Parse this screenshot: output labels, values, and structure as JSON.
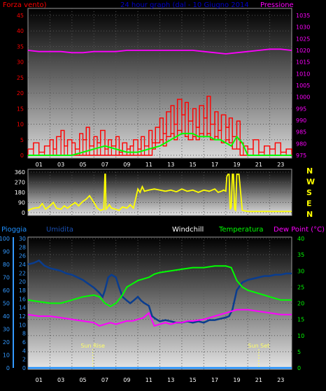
{
  "colors": {
    "wind": "#ff0000",
    "pressure": "#ff00ff",
    "title": "#0000cc",
    "direction": "#ffff00",
    "rain": "#1e90ff",
    "humidity": "#0a3d8f",
    "windchill": "#ffffff",
    "temperature": "#00ff00",
    "dewpoint": "#ff00ff",
    "axis_left": "#3399ff",
    "axis_right": "#00ff00",
    "sun": "#ffff66"
  },
  "chart_data": [
    {
      "type": "line",
      "title": "24 hour graph (dal - 10 Giugno 2014",
      "xtick_labels": [
        "01",
        "03",
        "05",
        "07",
        "09",
        "11",
        "13",
        "15",
        "17",
        "19",
        "21",
        "23"
      ],
      "y_left_label": "Forza vento)",
      "y_left_ticks": [
        "0",
        "5",
        "10",
        "15",
        "20",
        "25",
        "30",
        "35",
        "40",
        "45"
      ],
      "y_left_range": [
        0,
        45
      ],
      "y_right_label": "Pressione",
      "y_right_ticks": [
        "975",
        "980",
        "985",
        "990",
        "995",
        "1000",
        "1005",
        "1010",
        "1015",
        "1020",
        "1025",
        "1030",
        "1035"
      ],
      "y_right_range": [
        975,
        1035
      ],
      "series": [
        {
          "name": "Forza vento",
          "x": [
            0,
            0.5,
            1,
            1.5,
            2,
            2.3,
            2.6,
            3,
            3.3,
            3.6,
            4,
            4.3,
            4.7,
            5,
            5.3,
            5.6,
            6,
            6.3,
            6.6,
            7,
            7.3,
            7.6,
            8,
            8.3,
            8.6,
            9,
            9.3,
            9.6,
            10,
            10.3,
            10.6,
            11,
            11.3,
            11.6,
            12,
            12.3,
            12.6,
            13,
            13.3,
            13.6,
            14,
            14.3,
            14.6,
            15,
            15.3,
            15.6,
            16,
            16.3,
            16.6,
            17,
            17.3,
            17.6,
            18,
            18.3,
            18.6,
            19,
            19.3,
            19.6,
            20,
            20.5,
            21,
            21.5,
            22,
            22.5,
            23,
            23.5,
            24
          ],
          "values": [
            2,
            4,
            1,
            3,
            5,
            2,
            6,
            8,
            3,
            5,
            4,
            2,
            7,
            5,
            9,
            3,
            6,
            4,
            8,
            2,
            5,
            3,
            6,
            1,
            4,
            2,
            3,
            5,
            2,
            6,
            3,
            8,
            4,
            9,
            12,
            7,
            14,
            16,
            10,
            18,
            13,
            17,
            11,
            15,
            9,
            16,
            12,
            19,
            10,
            14,
            8,
            13,
            9,
            12,
            6,
            11,
            4,
            3,
            2,
            5,
            1,
            3,
            2,
            4,
            1,
            2,
            1
          ],
          "envelope_low": [
            0,
            0,
            0,
            0,
            0,
            0,
            0,
            0,
            0,
            0,
            0,
            0,
            0,
            0,
            0,
            0,
            0,
            0,
            0,
            0,
            0,
            0,
            0,
            0,
            0,
            0,
            0,
            0,
            0,
            0,
            0,
            0,
            2,
            4,
            5,
            3,
            6,
            7,
            5,
            8,
            7,
            6,
            5,
            6,
            5,
            7,
            6,
            7,
            5,
            6,
            5,
            4,
            5,
            4,
            2,
            2,
            0,
            0,
            0,
            0,
            0,
            0,
            0,
            0,
            0,
            0,
            0
          ]
        },
        {
          "name": "Raffica",
          "x": [
            0,
            1,
            2,
            3,
            4,
            5,
            6,
            7,
            8,
            9,
            10,
            11,
            12,
            12.5,
            13,
            13.5,
            14,
            14.5,
            15,
            15.5,
            16,
            16.5,
            17,
            17.5,
            18,
            18.5,
            19,
            19.5,
            20,
            21,
            22,
            23,
            24
          ],
          "values": [
            0,
            0,
            0,
            0,
            0,
            1,
            2,
            3,
            2,
            1,
            1,
            2,
            3,
            4,
            5,
            6,
            7,
            7,
            7,
            6,
            6,
            6,
            5,
            5,
            4,
            3,
            6,
            4,
            0,
            0,
            0,
            0,
            0
          ]
        },
        {
          "name": "Pressione",
          "x": [
            0,
            1,
            2,
            3,
            4,
            5,
            6,
            7,
            8,
            9,
            10,
            11,
            12,
            13,
            14,
            15,
            16,
            17,
            18,
            19,
            20,
            21,
            22,
            23,
            24
          ],
          "values": [
            1020,
            1019.5,
            1019.5,
            1019.5,
            1019,
            1019,
            1019.5,
            1019.5,
            1019.5,
            1020,
            1020,
            1020,
            1020,
            1020,
            1020,
            1020,
            1019.5,
            1019,
            1018.5,
            1019,
            1019.5,
            1020,
            1020.5,
            1020.5,
            1020
          ]
        }
      ]
    },
    {
      "type": "line",
      "xlabel": "",
      "y_left_ticks": [
        "0",
        "90",
        "180",
        "270",
        "360"
      ],
      "y_left_range": [
        0,
        360
      ],
      "compass_labels": [
        "N",
        "W",
        "S",
        "E",
        "N"
      ],
      "series": [
        {
          "name": "Direzione",
          "x": [
            0,
            0.5,
            1,
            1.3,
            1.6,
            2,
            2.3,
            2.6,
            3,
            3.3,
            3.6,
            4,
            4.3,
            4.6,
            5,
            5.3,
            5.6,
            6,
            6.3,
            6.6,
            6.9,
            7,
            7.05,
            7.1,
            7.2,
            7.4,
            7.6,
            8,
            8.3,
            8.6,
            9,
            9.3,
            9.6,
            10,
            10.2,
            10.4,
            10.6,
            11,
            11.5,
            12,
            12.5,
            13,
            13.5,
            14,
            14.5,
            15,
            15.5,
            16,
            16.5,
            17,
            17.3,
            17.6,
            17.8,
            18,
            18.1,
            18.2,
            18.3,
            18.4,
            18.5,
            18.6,
            18.7,
            18.8,
            18.9,
            19,
            19.2,
            19.5,
            20,
            21,
            22,
            23,
            24
          ],
          "values": [
            20,
            40,
            45,
            80,
            30,
            60,
            90,
            40,
            30,
            60,
            40,
            70,
            90,
            60,
            100,
            120,
            150,
            90,
            40,
            20,
            30,
            340,
            340,
            30,
            40,
            70,
            40,
            30,
            20,
            50,
            40,
            70,
            40,
            210,
            180,
            230,
            190,
            200,
            210,
            200,
            190,
            200,
            185,
            210,
            190,
            200,
            180,
            200,
            190,
            210,
            180,
            190,
            200,
            190,
            320,
            340,
            340,
            30,
            50,
            340,
            340,
            30,
            20,
            340,
            340,
            20,
            10,
            10,
            10,
            10,
            10
          ]
        }
      ]
    },
    {
      "type": "line",
      "xtick_labels": [
        "01",
        "03",
        "05",
        "07",
        "09",
        "11",
        "13",
        "15",
        "17",
        "19",
        "21",
        "23"
      ],
      "legend": [
        "Pioggia",
        "Umidita",
        "Windchill",
        "Temperatura",
        "Dew Point (°C)"
      ],
      "y_left_ticks": [
        "0",
        "10",
        "20",
        "30",
        "40",
        "50",
        "60",
        "70",
        "80",
        "90",
        "100"
      ],
      "y_left_range": [
        0,
        100
      ],
      "y_mid_ticks": [
        "0",
        "2",
        "4",
        "6",
        "8",
        "10",
        "12",
        "14",
        "16",
        "18",
        "20",
        "22",
        "24",
        "26",
        "28",
        "30"
      ],
      "y_mid_range": [
        0,
        30
      ],
      "y_right_ticks": [
        "0",
        "5",
        "10",
        "15",
        "20",
        "25",
        "30",
        "35",
        "40"
      ],
      "y_right_range": [
        0,
        40
      ],
      "annotations": [
        "Sun Rise",
        "Sun Set"
      ],
      "annotation_x": [
        5.9,
        21.0
      ],
      "series": [
        {
          "name": "Pioggia",
          "x": [
            0,
            24
          ],
          "values": [
            0,
            0
          ]
        },
        {
          "name": "Umidita",
          "x": [
            0,
            0.5,
            1,
            1.5,
            2,
            2.5,
            3,
            3.5,
            4,
            4.5,
            5,
            5.5,
            6,
            6.5,
            6.8,
            7,
            7.3,
            7.6,
            8,
            8.3,
            8.6,
            9,
            9.3,
            9.6,
            10,
            10.3,
            10.6,
            11,
            11.3,
            11.6,
            12,
            12.5,
            13,
            13.5,
            14,
            14.5,
            15,
            15.5,
            16,
            16.5,
            17,
            17.5,
            18,
            18.3,
            18.6,
            19,
            19.5,
            20,
            20.5,
            21,
            21.5,
            22,
            22.5,
            23,
            23.5,
            24
          ],
          "values": [
            80,
            81,
            83,
            79,
            77,
            76,
            75,
            73,
            72,
            70,
            68,
            65,
            62,
            58,
            55,
            60,
            70,
            72,
            70,
            62,
            55,
            52,
            50,
            52,
            55,
            52,
            50,
            48,
            40,
            38,
            36,
            37,
            36,
            35,
            35,
            36,
            35,
            36,
            35,
            37,
            37,
            38,
            39,
            40,
            45,
            60,
            66,
            68,
            69,
            70,
            71,
            71,
            72,
            72,
            73,
            73
          ]
        },
        {
          "name": "Windchill",
          "x": [
            0,
            24
          ],
          "values": [
            0,
            0
          ]
        },
        {
          "name": "Temperatura",
          "x": [
            0,
            1,
            2,
            3,
            4,
            5,
            6,
            6.5,
            7,
            7.5,
            8,
            8.5,
            9,
            9.5,
            10,
            10.5,
            11,
            11.5,
            12,
            13,
            14,
            15,
            16,
            17,
            18,
            18.5,
            19,
            19.5,
            20,
            21,
            22,
            23,
            24
          ],
          "values": [
            21,
            20.5,
            20,
            20,
            21,
            22,
            22.5,
            22,
            20,
            19,
            20,
            22,
            25,
            26,
            27,
            27.5,
            28,
            29,
            29.5,
            30,
            30.5,
            31,
            31,
            31.5,
            31.5,
            31,
            27,
            25,
            24,
            23,
            22,
            21,
            21
          ]
        },
        {
          "name": "Dew Point",
          "x": [
            0,
            1,
            2,
            3,
            4,
            5,
            6,
            6.5,
            7,
            7.5,
            8,
            8.5,
            9,
            9.5,
            10,
            10.5,
            11,
            11.5,
            12,
            12.5,
            13,
            13.5,
            14,
            14.5,
            15,
            16,
            17,
            18,
            19,
            20,
            21,
            22,
            23,
            24
          ],
          "values": [
            16.5,
            16,
            16,
            15.5,
            15,
            14.5,
            14,
            13,
            13.5,
            14,
            13.5,
            14,
            14.5,
            14.5,
            15,
            15.5,
            17,
            13,
            13.5,
            14,
            13.5,
            14,
            14,
            14.5,
            14.5,
            15,
            16,
            17,
            18,
            18,
            17.5,
            17,
            16.5,
            16.5
          ]
        }
      ]
    }
  ]
}
